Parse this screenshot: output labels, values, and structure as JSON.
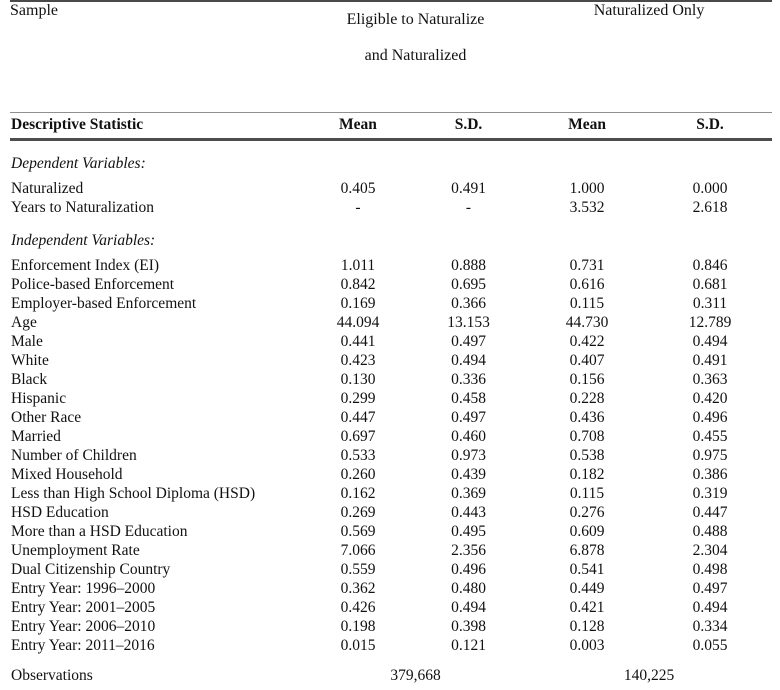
{
  "table": {
    "top_header": {
      "sample_label": "Sample",
      "group1_line1": "Eligible to Naturalize",
      "group1_line2": "and Naturalized",
      "group2": "Naturalized Only"
    },
    "header_row": {
      "stat_label": "Descriptive Statistic",
      "cols": [
        "Mean",
        "S.D.",
        "Mean",
        "S.D."
      ]
    },
    "sections": [
      {
        "title": "Dependent Variables:",
        "rows": [
          {
            "label": "Naturalized",
            "values": [
              "0.405",
              "0.491",
              "1.000",
              "0.000"
            ]
          },
          {
            "label": "Years to Naturalization",
            "values": [
              "-",
              "-",
              "3.532",
              "2.618"
            ]
          }
        ]
      },
      {
        "title": "Independent Variables:",
        "rows": [
          {
            "label": "Enforcement Index (EI)",
            "values": [
              "1.011",
              "0.888",
              "0.731",
              "0.846"
            ]
          },
          {
            "label": "Police-based Enforcement",
            "values": [
              "0.842",
              "0.695",
              "0.616",
              "0.681"
            ]
          },
          {
            "label": "Employer-based Enforcement",
            "values": [
              "0.169",
              "0.366",
              "0.115",
              "0.311"
            ]
          },
          {
            "label": "Age",
            "values": [
              "44.094",
              "13.153",
              "44.730",
              "12.789"
            ]
          },
          {
            "label": "Male",
            "values": [
              "0.441",
              "0.497",
              "0.422",
              "0.494"
            ]
          },
          {
            "label": "White",
            "values": [
              "0.423",
              "0.494",
              "0.407",
              "0.491"
            ]
          },
          {
            "label": "Black",
            "values": [
              "0.130",
              "0.336",
              "0.156",
              "0.363"
            ]
          },
          {
            "label": "Hispanic",
            "values": [
              "0.299",
              "0.458",
              "0.228",
              "0.420"
            ]
          },
          {
            "label": "Other Race",
            "values": [
              "0.447",
              "0.497",
              "0.436",
              "0.496"
            ]
          },
          {
            "label": "Married",
            "values": [
              "0.697",
              "0.460",
              "0.708",
              "0.455"
            ]
          },
          {
            "label": "Number of Children",
            "values": [
              "0.533",
              "0.973",
              "0.538",
              "0.975"
            ]
          },
          {
            "label": "Mixed Household",
            "values": [
              "0.260",
              "0.439",
              "0.182",
              "0.386"
            ]
          },
          {
            "label": "Less than High School Diploma (HSD)",
            "values": [
              "0.162",
              "0.369",
              "0.115",
              "0.319"
            ]
          },
          {
            "label": "HSD Education",
            "values": [
              "0.269",
              "0.443",
              "0.276",
              "0.447"
            ]
          },
          {
            "label": "More than a HSD Education",
            "values": [
              "0.569",
              "0.495",
              "0.609",
              "0.488"
            ]
          },
          {
            "label": "Unemployment Rate",
            "values": [
              "7.066",
              "2.356",
              "6.878",
              "2.304"
            ]
          },
          {
            "label": "Dual Citizenship Country",
            "values": [
              "0.559",
              "0.496",
              "0.541",
              "0.498"
            ]
          },
          {
            "label": "Entry Year: 1996–2000",
            "values": [
              "0.362",
              "0.480",
              "0.449",
              "0.497"
            ]
          },
          {
            "label": "Entry Year: 2001–2005",
            "values": [
              "0.426",
              "0.494",
              "0.421",
              "0.494"
            ]
          },
          {
            "label": "Entry Year: 2006–2010",
            "values": [
              "0.198",
              "0.398",
              "0.128",
              "0.334"
            ]
          },
          {
            "label": "Entry Year: 2011–2016",
            "values": [
              "0.015",
              "0.121",
              "0.003",
              "0.055"
            ]
          }
        ]
      }
    ],
    "observations": {
      "label": "Observations",
      "group1_value": "379,668",
      "group2_value": "140,225"
    }
  },
  "colors": {
    "text": "#111111",
    "rule_top": "#4a4a4a",
    "rule_thin": "#8f8f8f",
    "rule_header_bottom": "#4d4d4d",
    "rule_bottom": "#333333",
    "background": "#ffffff"
  }
}
